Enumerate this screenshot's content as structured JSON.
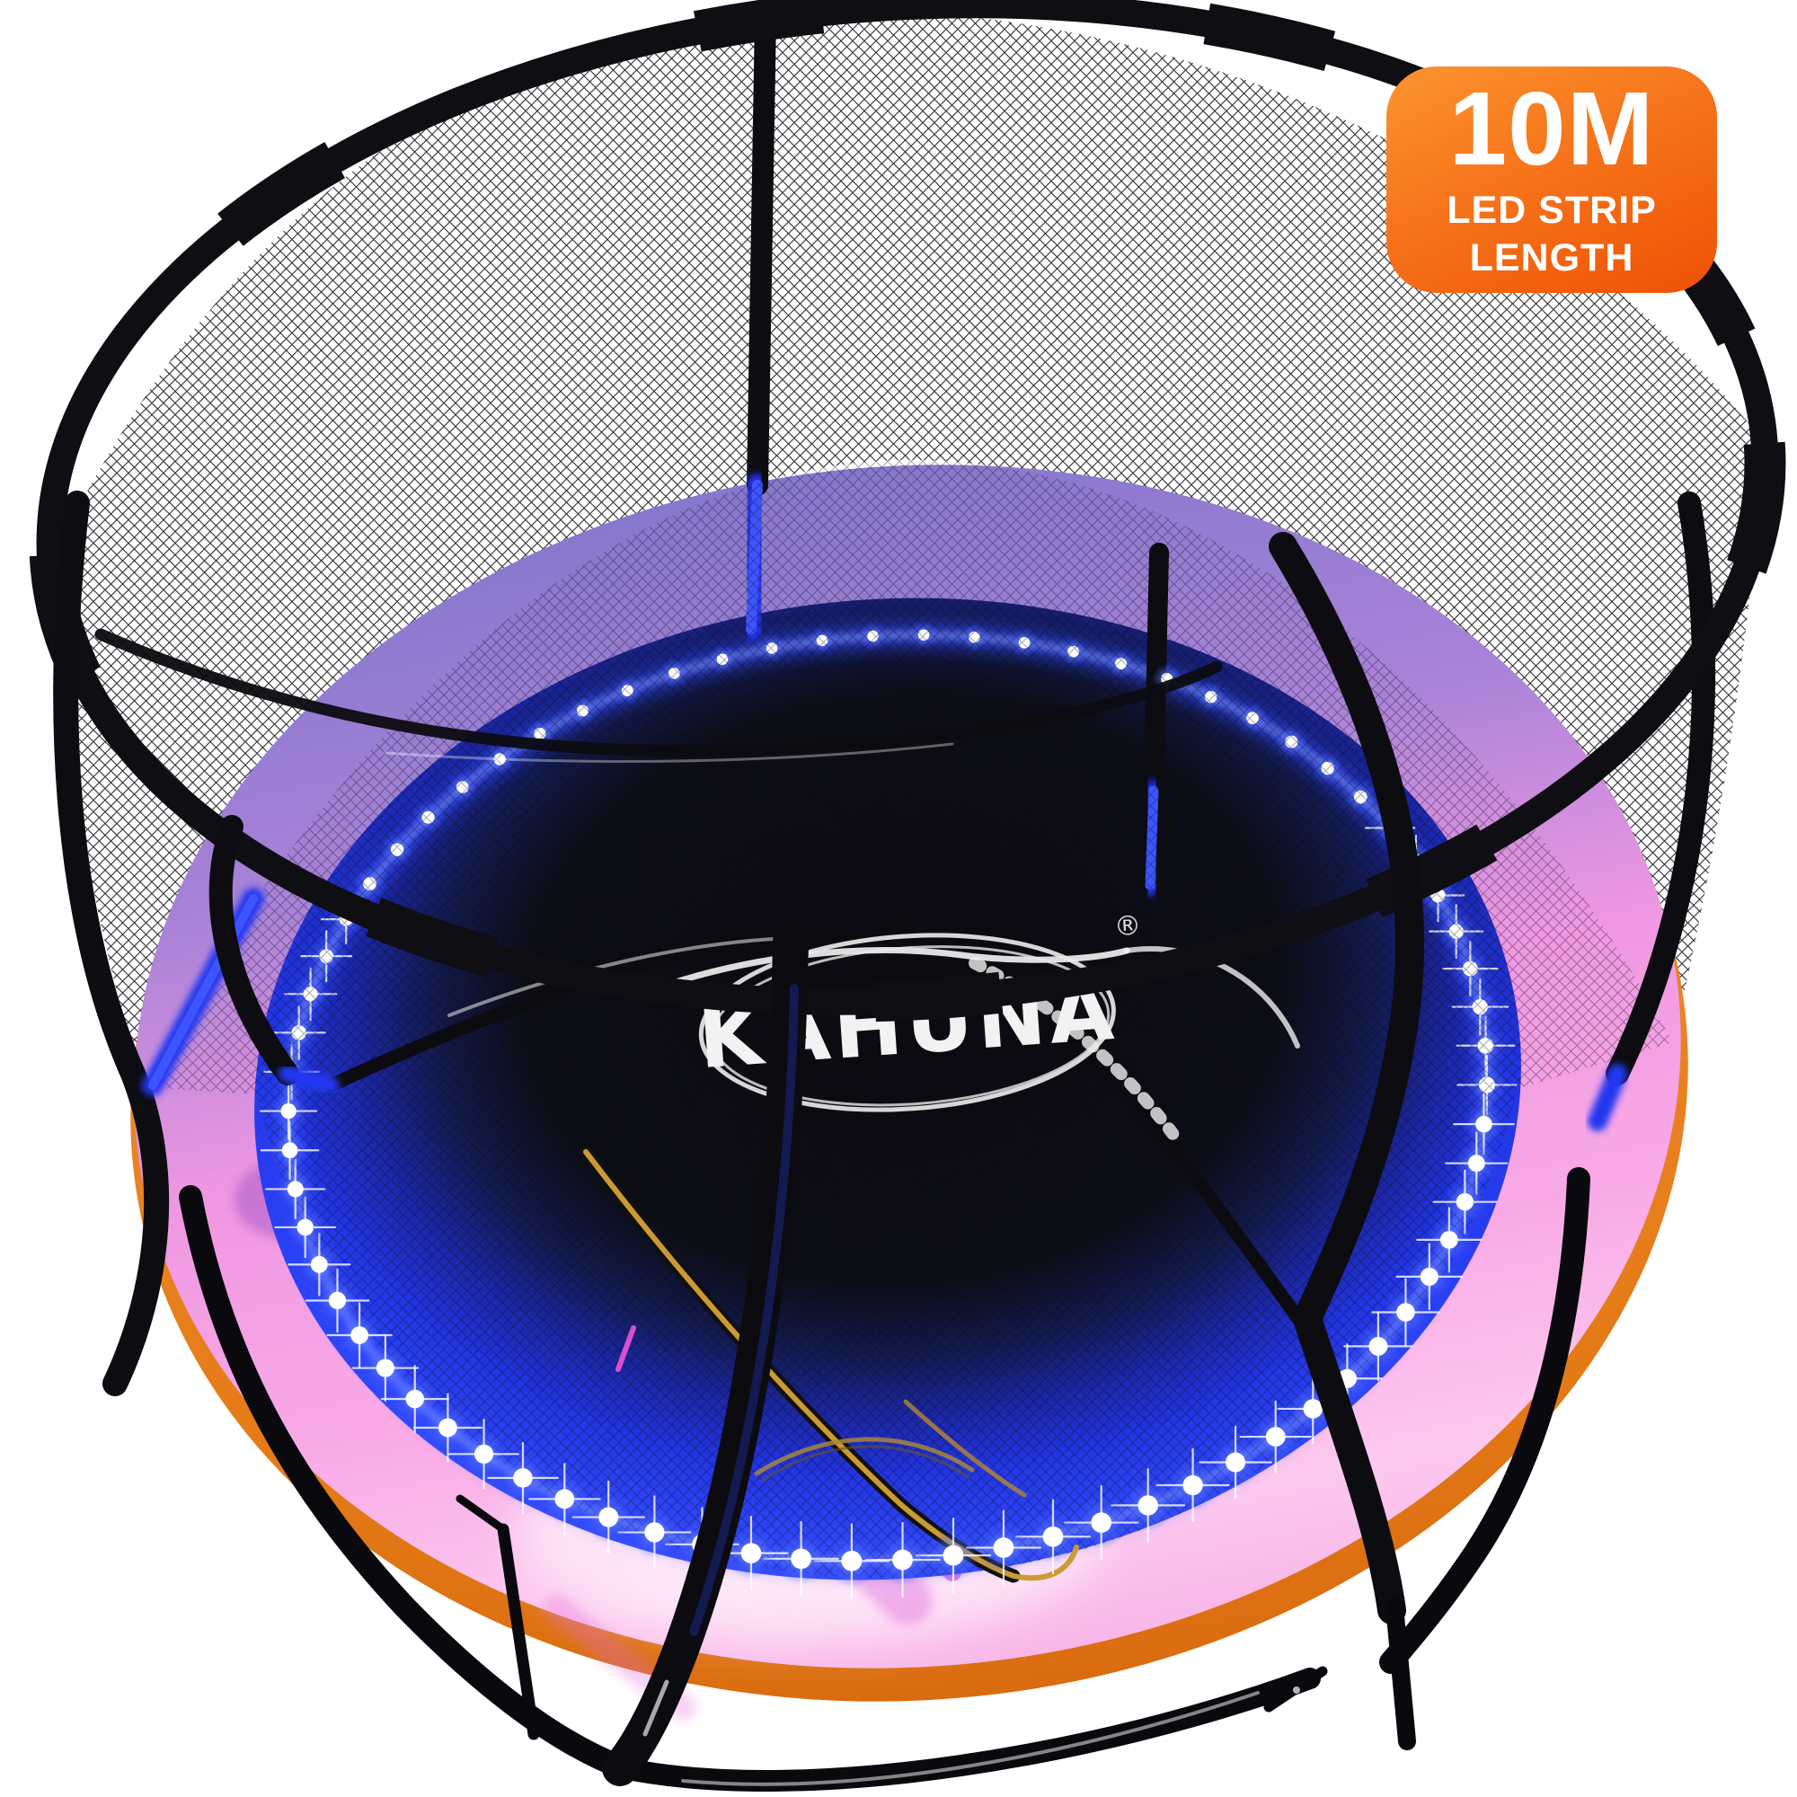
{
  "badge": {
    "headline": "10M",
    "subline1": "LED STRIP",
    "subline2": "LENGTH"
  },
  "product": {
    "brand": "KAHUNA",
    "registered_mark": "®"
  },
  "colors": {
    "background": "#ffffff",
    "badge_gradient_top": "#fb9430",
    "badge_gradient_bottom": "#ee5106",
    "badge_text": "#ffffff",
    "net_frame_black": "#0e0e13",
    "pad_purple_back": "#8577cc",
    "pad_pink_front": "#f9aae6",
    "pad_streak_magenta": "#d94fd8",
    "rim_orange": "#e57b17",
    "mat_edge_blue": "#2e46fa",
    "mat_center_dark": "#0b0b11",
    "led_white": "#ffffff",
    "led_halo_blue": "#2f46ff",
    "zipper_gold": "#cc9a33",
    "rope_white": "#f0f0f0",
    "logo_white": "#f2f2f2"
  }
}
